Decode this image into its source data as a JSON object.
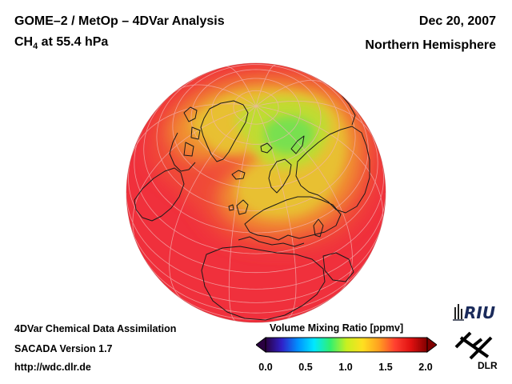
{
  "header": {
    "title": "GOME–2 / MetOp – 4DVar Analysis",
    "species_main": "CH",
    "species_sub": "4",
    "pressure_level": " at 55.4 hPa",
    "date": "Dec 20, 2007",
    "region": "Northern Hemisphere"
  },
  "footer": {
    "system": "4DVar Chemical Data Assimilation",
    "version": "SACADA Version 1.7",
    "url": "http://wdc.dlr.de"
  },
  "colorbar": {
    "title": "Volume Mixing Ratio [ppmv]",
    "ticks": [
      "0.0",
      "0.5",
      "1.0",
      "1.5",
      "2.0"
    ],
    "range": [
      0.0,
      2.0
    ],
    "stops": [
      "#2a0040",
      "#3020c8",
      "#0090ff",
      "#00e8ff",
      "#30f070",
      "#c8f020",
      "#ffe020",
      "#ffa020",
      "#ff4030",
      "#e01010",
      "#800000"
    ]
  },
  "map": {
    "projection": "orthographic",
    "hemisphere": "north",
    "field_colors": {
      "background": "#f0303c",
      "outer": "#f04a38",
      "mid": "#f09030",
      "high": "#e8c030",
      "peak": "#c0dc30",
      "maximum": "#78e050"
    }
  },
  "logos": {
    "riu": "RIU",
    "dlr": "DLR"
  }
}
